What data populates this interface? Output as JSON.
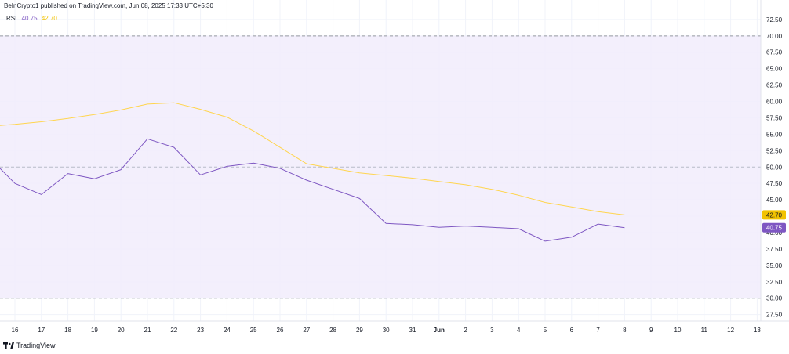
{
  "header": {
    "publisher": "BeInCrypto1 published on TradingView.com, Jun 08, 2025 17:33 UTC+5:30"
  },
  "legend": {
    "indicator": "RSI",
    "rsi_value": "40.75",
    "ma_value": "42.70"
  },
  "footer": {
    "brand": "TradingView"
  },
  "colors": {
    "rsi": "#7e57c2",
    "ma": "#ffd54f",
    "band_fill": "#f1ecfb",
    "rsi_badge": "#7e57c2",
    "ma_badge": "#f2c200"
  },
  "chart_data": {
    "type": "line",
    "ylim": [
      26.5,
      73.8
    ],
    "yticks": [
      "72.50",
      "70.00",
      "67.50",
      "65.00",
      "62.50",
      "60.00",
      "57.50",
      "55.00",
      "52.50",
      "50.00",
      "47.50",
      "45.00",
      "42.50",
      "40.00",
      "37.50",
      "35.00",
      "32.50",
      "30.00",
      "27.50"
    ],
    "xticks": [
      "16",
      "17",
      "18",
      "19",
      "20",
      "21",
      "22",
      "23",
      "24",
      "25",
      "26",
      "27",
      "28",
      "29",
      "30",
      "31",
      "Jun",
      "2",
      "3",
      "4",
      "5",
      "6",
      "7",
      "8",
      "9",
      "10",
      "11",
      "12",
      "13"
    ],
    "levels": {
      "upper": 70,
      "middle": 50,
      "lower": 30
    },
    "series": [
      {
        "key": "rsi",
        "x": [
          "May 15",
          "May 16",
          "May 17",
          "May 18",
          "May 19",
          "May 20",
          "May 21",
          "May 22",
          "May 23",
          "May 24",
          "May 25",
          "May 26",
          "May 27",
          "May 28",
          "May 29",
          "May 30",
          "May 31",
          "Jun 1",
          "Jun 2",
          "Jun 3",
          "Jun 4",
          "Jun 5",
          "Jun 6",
          "Jun 7",
          "Jun 8"
        ],
        "values": [
          51.6,
          47.5,
          45.8,
          49.0,
          48.2,
          49.6,
          54.3,
          53.0,
          48.8,
          50.1,
          50.6,
          49.8,
          48.0,
          46.6,
          45.2,
          41.4,
          41.2,
          40.8,
          41.0,
          40.8,
          40.6,
          38.7,
          39.3,
          41.3,
          40.75
        ],
        "badge": "40.75"
      },
      {
        "key": "ma",
        "x": [
          "May 15",
          "May 16",
          "May 17",
          "May 18",
          "May 19",
          "May 20",
          "May 21",
          "May 22",
          "May 23",
          "May 24",
          "May 25",
          "May 26",
          "May 27",
          "May 28",
          "May 29",
          "May 30",
          "May 31",
          "Jun 1",
          "Jun 2",
          "Jun 3",
          "Jun 4",
          "Jun 5",
          "Jun 6",
          "Jun 7",
          "Jun 8"
        ],
        "values": [
          56.2,
          56.5,
          56.9,
          57.4,
          58.0,
          58.7,
          59.6,
          59.8,
          58.8,
          57.6,
          55.5,
          53.0,
          50.5,
          49.8,
          49.1,
          48.7,
          48.3,
          47.8,
          47.3,
          46.6,
          45.7,
          44.6,
          43.9,
          43.2,
          42.7
        ],
        "badge": "42.70"
      }
    ]
  }
}
